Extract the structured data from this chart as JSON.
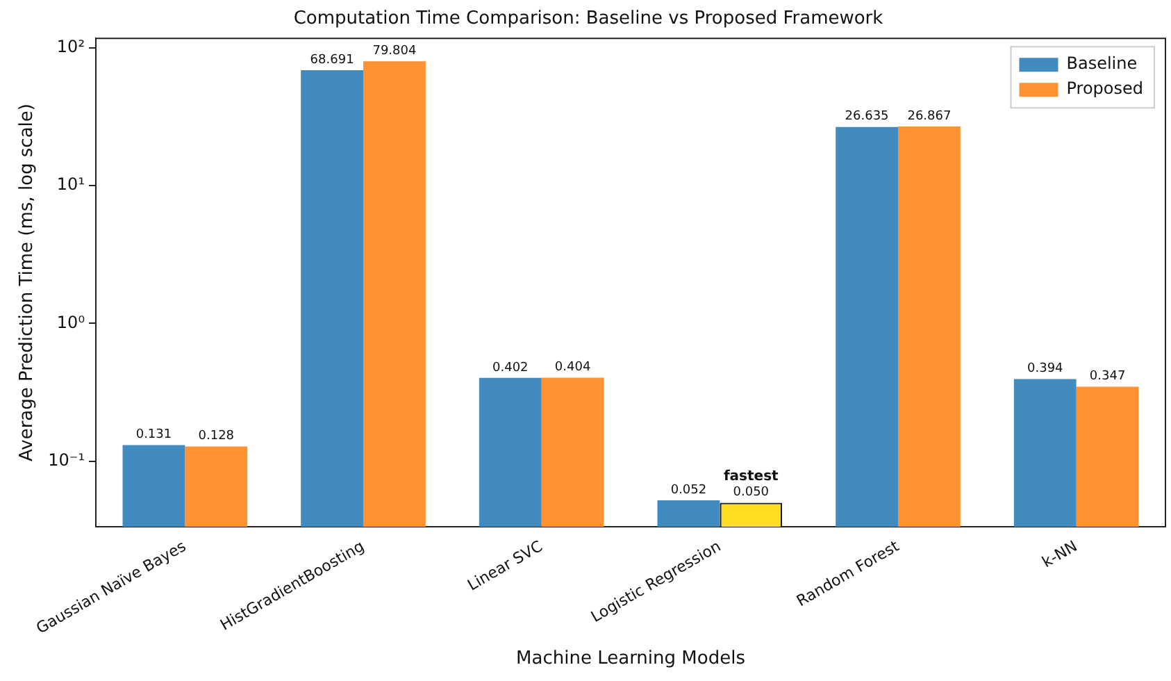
{
  "chart_data": {
    "type": "bar",
    "title": "Computation Time Comparison: Baseline vs Proposed Framework",
    "xlabel": "Machine Learning Models",
    "ylabel": "Average Prediction Time (ms, log scale)",
    "categories": [
      "Gaussian Naïve Bayes",
      "HistGradientBoosting",
      "Linear SVC",
      "Logistic Regression",
      "Random Forest",
      "k-NN"
    ],
    "series": [
      {
        "name": "Baseline",
        "color": "#428bbf",
        "values": [
          0.131,
          68.691,
          0.402,
          0.052,
          26.635,
          0.394
        ],
        "value_labels": [
          "0.131",
          "68.691",
          "0.402",
          "0.052",
          "26.635",
          "0.394"
        ]
      },
      {
        "name": "Proposed",
        "color": "#ff9233",
        "colors": [
          "#ff9233",
          "#ff9233",
          "#ff9233",
          "#ffdd22",
          "#ff9233",
          "#ff9233"
        ],
        "values": [
          0.128,
          79.804,
          0.404,
          0.05,
          26.867,
          0.347
        ],
        "value_labels": [
          "0.128",
          "79.804",
          "0.404",
          "0.050",
          "26.867",
          "0.347"
        ]
      }
    ],
    "log": "y",
    "ylim": [
      0.0335,
      117
    ],
    "yticks": [
      {
        "value": 0.1,
        "label": "10⁻¹"
      },
      {
        "value": 1,
        "label": "10⁰"
      },
      {
        "value": 10,
        "label": "10¹"
      },
      {
        "value": 100,
        "label": "10²"
      }
    ],
    "annotations": [
      {
        "text": "fastest",
        "x": "Logistic Regression",
        "y": 0.05
      }
    ],
    "legend": "top right",
    "grid": false
  }
}
